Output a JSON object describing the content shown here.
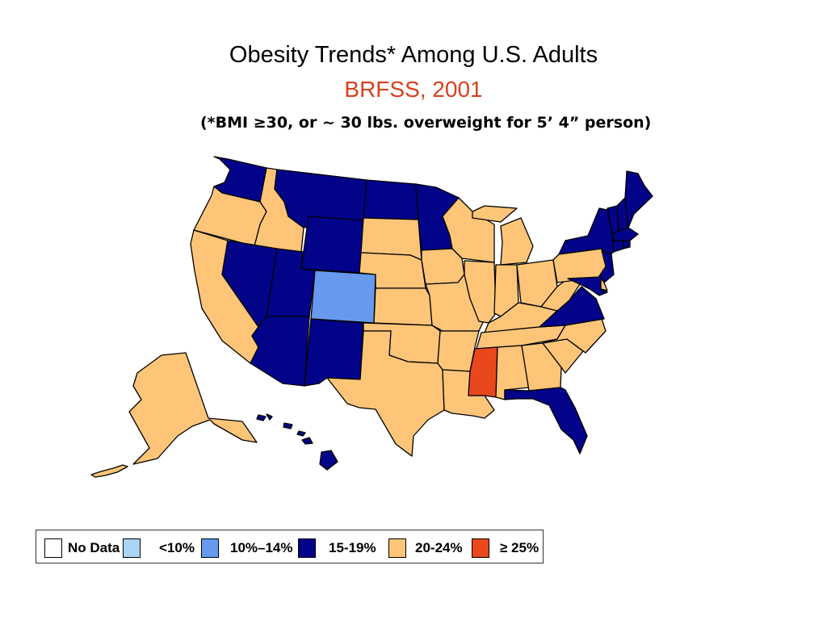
{
  "title": "Obesity Trends* Among U.S. Adults",
  "subtitle": "BRFSS, 2001",
  "footnote": "(*BMI ≥30, or ~ 30 lbs. overweight for 5’ 4” person)",
  "colors": {
    "title": "#000000",
    "subtitle": "#d8401e",
    "no_data": "#ffffff",
    "lt10": "#a9d4f6",
    "p10_14": "#6799ee",
    "p15_19": "#020389",
    "p20_24": "#fec579",
    "ge25": "#e9471c"
  },
  "legend": [
    {
      "key": "no_data",
      "label": "No Data"
    },
    {
      "key": "lt10",
      "label": "<10%"
    },
    {
      "key": "p10_14",
      "label": "10%–14%"
    },
    {
      "key": "p15_19",
      "label": "15-19%"
    },
    {
      "key": "p20_24",
      "label": "20-24%"
    },
    {
      "key": "ge25",
      "label": "≥ 25%"
    }
  ],
  "state_categories": {
    "WA": "p15_19",
    "OR": "p20_24",
    "CA": "p20_24",
    "ID": "p20_24",
    "NV": "p15_19",
    "MT": "p15_19",
    "WY": "p15_19",
    "UT": "p15_19",
    "AZ": "p15_19",
    "CO": "p10_14",
    "NM": "p15_19",
    "ND": "p15_19",
    "SD": "p20_24",
    "NE": "p20_24",
    "KS": "p20_24",
    "OK": "p20_24",
    "TX": "p20_24",
    "MN": "p15_19",
    "IA": "p20_24",
    "MO": "p20_24",
    "AR": "p20_24",
    "LA": "p20_24",
    "WI": "p20_24",
    "IL": "p20_24",
    "MI": "p20_24",
    "IN": "p20_24",
    "OH": "p20_24",
    "KY": "p20_24",
    "TN": "p20_24",
    "MS": "ge25",
    "AL": "p20_24",
    "GA": "p20_24",
    "FL": "p15_19",
    "SC": "p20_24",
    "NC": "p20_24",
    "VA": "p15_19",
    "WV": "p20_24",
    "PA": "p20_24",
    "NY": "p15_19",
    "NJ": "p15_19",
    "DE": "p20_24",
    "MD": "p15_19",
    "CT": "p15_19",
    "RI": "p15_19",
    "MA": "p15_19",
    "VT": "p15_19",
    "NH": "p15_19",
    "ME": "p15_19",
    "AK": "p20_24",
    "HI": "p15_19"
  }
}
